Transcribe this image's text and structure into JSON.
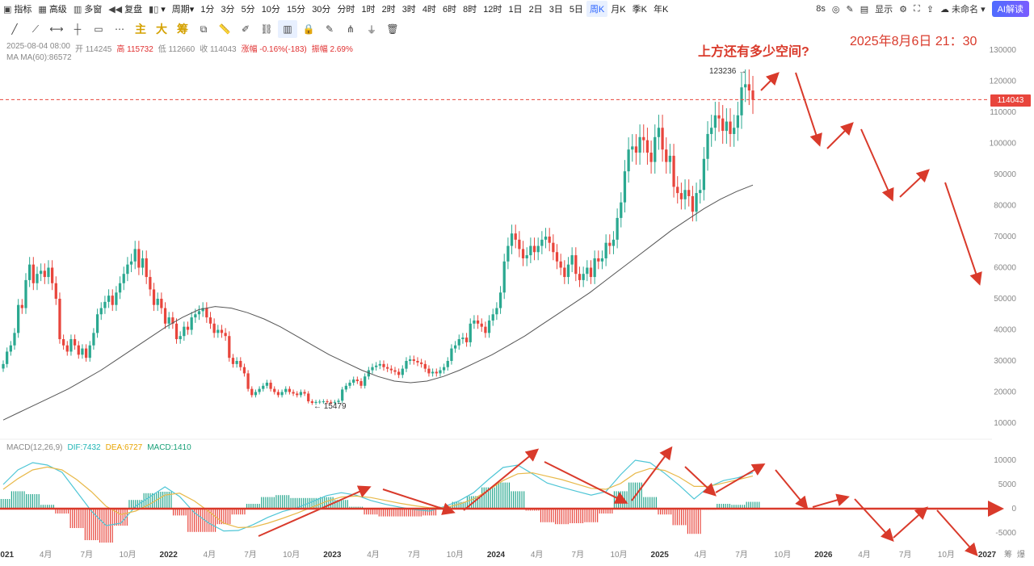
{
  "toolbar": {
    "items": [
      {
        "icon": "indicator-icon",
        "label": "指标"
      },
      {
        "icon": "advanced-icon",
        "label": "高级"
      },
      {
        "icon": "multiwindow-icon",
        "label": "多窗"
      },
      {
        "icon": "replay-icon",
        "label": "复盘"
      },
      {
        "icon": "chart-type-icon",
        "label": "▾"
      },
      {
        "icon": "",
        "label": "周期▾"
      },
      {
        "icon": "",
        "label": "1分"
      },
      {
        "icon": "",
        "label": "3分"
      },
      {
        "icon": "",
        "label": "5分"
      },
      {
        "icon": "",
        "label": "10分"
      },
      {
        "icon": "",
        "label": "15分"
      },
      {
        "icon": "",
        "label": "30分"
      },
      {
        "icon": "",
        "label": "分时"
      },
      {
        "icon": "",
        "label": "1时"
      },
      {
        "icon": "",
        "label": "2时"
      },
      {
        "icon": "",
        "label": "3时"
      },
      {
        "icon": "",
        "label": "4时"
      },
      {
        "icon": "",
        "label": "6时"
      },
      {
        "icon": "",
        "label": "8时"
      },
      {
        "icon": "",
        "label": "12时"
      },
      {
        "icon": "",
        "label": "1日"
      },
      {
        "icon": "",
        "label": "2日"
      },
      {
        "icon": "",
        "label": "3日"
      },
      {
        "icon": "",
        "label": "5日"
      },
      {
        "icon": "",
        "label": "周K",
        "active": true
      },
      {
        "icon": "",
        "label": "月K"
      },
      {
        "icon": "",
        "label": "季K"
      },
      {
        "icon": "",
        "label": "年K"
      }
    ],
    "right": {
      "refresh": "8s",
      "display": "显示",
      "cloud": "未命名",
      "ai": "AI解读"
    },
    "draw_tools": [
      "trend-line-icon",
      "ray-icon",
      "horizontal-segment-icon",
      "vertical-line-icon",
      "rectangle-icon",
      "more-icon"
    ],
    "special_tools": [
      "主",
      "大",
      "筹"
    ],
    "draw_tools2": [
      "copy-icon",
      "ruler-icon",
      "brush-icon",
      "link-icon",
      "candle-icon",
      "lock-icon",
      "note-icon",
      "magnet-icon",
      "filter-icon",
      "trash-icon"
    ]
  },
  "info": {
    "date": "2025-08-04 08:00",
    "open": "开 114245",
    "high": "高 115732",
    "low": "低 112660",
    "close": "收 114043",
    "change": "涨幅 -0.16%(-183)",
    "amplitude": "振幅 2.69%",
    "ma": "MA",
    "ma60": "MA(60):86572"
  },
  "macd_info": {
    "name": "MACD(12,26,9)",
    "dif": "DIF:7432",
    "dea": "DEA:6727",
    "macd": "MACD:1410"
  },
  "annotations": {
    "question": "上方还有多少空间?",
    "datetime": "2025年8月6日 21：30",
    "high_label": "123236",
    "low_label": "15479",
    "current_price": "114043"
  },
  "colors": {
    "up": "#2aa890",
    "down": "#e8453c",
    "ma": "#555555",
    "dif": "#4fc6d6",
    "dea": "#e8b94a",
    "annotation": "#d93a2b"
  },
  "chart_data": {
    "type": "line",
    "title": "",
    "price_axis": {
      "ylim": [
        5000,
        132000
      ],
      "ticks": [
        "130000",
        "120000",
        "110000",
        "100000",
        "90000",
        "80000",
        "70000",
        "60000",
        "50000",
        "40000",
        "30000",
        "20000",
        "10000"
      ]
    },
    "macd_axis": {
      "ylim": [
        -7500,
        12500
      ],
      "ticks": [
        "10000",
        "5000",
        "0",
        "-5000"
      ]
    },
    "time_axis": {
      "labels": [
        "2021",
        "4月",
        "7月",
        "10月",
        "2022",
        "4月",
        "7月",
        "10月",
        "2023",
        "4月",
        "7月",
        "10月",
        "2024",
        "4月",
        "7月",
        "10月",
        "2025",
        "4月",
        "7月",
        "10月",
        "2026",
        "4月",
        "7月",
        "10月",
        "2027"
      ],
      "extra": [
        "筹",
        "爆"
      ]
    },
    "weekly_close": [
      29000,
      33000,
      35000,
      39000,
      48000,
      47000,
      56000,
      61000,
      55000,
      58000,
      59000,
      57000,
      60000,
      55000,
      50000,
      37000,
      35000,
      33000,
      37000,
      35000,
      32000,
      34000,
      31000,
      35000,
      39000,
      45000,
      47000,
      49000,
      51000,
      48000,
      52000,
      55000,
      58000,
      61000,
      62000,
      66000,
      60000,
      63000,
      57000,
      53000,
      48000,
      50000,
      47000,
      42000,
      44000,
      42000,
      37000,
      38000,
      41000,
      40000,
      44000,
      45000,
      46000,
      47000,
      44000,
      42000,
      39000,
      40000,
      39000,
      38000,
      31000,
      29000,
      30000,
      28000,
      26000,
      21000,
      19000,
      20000,
      21000,
      22000,
      23000,
      21000,
      20000,
      19000,
      20000,
      21000,
      20000,
      19500,
      19000,
      20000,
      19500,
      17000,
      16500,
      16800,
      16900,
      17000,
      16800,
      16600,
      16800,
      17200,
      20800,
      22000,
      23000,
      24000,
      23500,
      22000,
      25000,
      27000,
      28000,
      28500,
      29000,
      28000,
      27500,
      27000,
      26500,
      25500,
      27500,
      30000,
      30500,
      30000,
      29500,
      29000,
      27500,
      26000,
      26500,
      26000,
      27000,
      28000,
      30000,
      34000,
      35000,
      37000,
      37500,
      36000,
      42000,
      43000,
      42000,
      41000,
      39000,
      43000,
      45000,
      47000,
      52000,
      62000,
      67000,
      71000,
      69000,
      66000,
      63000,
      64000,
      67000,
      65000,
      67000,
      69000,
      70000,
      68000,
      65000,
      62000,
      60000,
      57000,
      61000,
      64000,
      58000,
      56000,
      58000,
      60000,
      57000,
      63000,
      62000,
      63000,
      68000,
      67000,
      69000,
      76000,
      81000,
      91000,
      98000,
      99000,
      97000,
      102000,
      101000,
      97000,
      94000,
      102000,
      105000,
      98000,
      94000,
      96000,
      86000,
      84000,
      82000,
      85000,
      83000,
      78000,
      84000,
      85000,
      95000,
      103000,
      105000,
      109000,
      108000,
      104000,
      107000,
      103000,
      105000,
      109000,
      118000,
      119000,
      117000,
      114000
    ],
    "ma60": [
      11000,
      13500,
      16000,
      18500,
      21000,
      24000,
      27000,
      30500,
      34000,
      37500,
      41000,
      44000,
      46500,
      47500,
      47000,
      45500,
      43500,
      41000,
      38000,
      35000,
      32000,
      29500,
      27000,
      25000,
      23500,
      23000,
      23500,
      25000,
      27000,
      29500,
      32000,
      35000,
      38000,
      41500,
      45000,
      48500,
      52000,
      56000,
      60000,
      64000,
      68000,
      72000,
      75500,
      79000,
      82000,
      84500,
      86572
    ],
    "series": [
      {
        "name": "DIF",
        "values": [
          5000,
          8000,
          9500,
          9000,
          7500,
          3500,
          -500,
          -3500,
          -3000,
          500,
          2500,
          4500,
          2500,
          -800,
          -3000,
          -4600,
          -4500,
          -3300,
          -1800,
          -600,
          200,
          1400,
          2700,
          3300,
          2800,
          1700,
          900,
          300,
          -200,
          -500,
          400,
          1600,
          3300,
          6000,
          8500,
          9000,
          7200,
          5300,
          4400,
          3600,
          2800,
          3500,
          7000,
          10000,
          9500,
          7300,
          4800,
          2000,
          4500,
          5800,
          6400,
          7432
        ]
      },
      {
        "name": "DEA",
        "values": [
          4000,
          6200,
          8000,
          8600,
          8000,
          6000,
          3500,
          500,
          -1200,
          -500,
          1000,
          2800,
          3200,
          1600,
          -600,
          -3000,
          -3900,
          -3800,
          -3000,
          -2000,
          -900,
          300,
          1500,
          2400,
          2600,
          2300,
          1700,
          1100,
          600,
          200,
          200,
          900,
          2000,
          3800,
          5800,
          7200,
          7400,
          6700,
          6000,
          5100,
          4200,
          4000,
          5200,
          7300,
          8300,
          7900,
          6500,
          4600,
          4600,
          5300,
          6000,
          6727
        ]
      }
    ],
    "histogram": [
      2000,
      3600,
      3000,
      800,
      -1000,
      -4000,
      -6500,
      -7000,
      -3500,
      1800,
      3200,
      3500,
      -1400,
      -4800,
      -4800,
      -3200,
      -1200,
      1000,
      2400,
      2800,
      2200,
      2200,
      2400,
      1800,
      400,
      -1200,
      -1600,
      -1600,
      -1600,
      -1400,
      400,
      1400,
      2600,
      4400,
      5400,
      3600,
      -400,
      -2800,
      -3200,
      -3000,
      -2800,
      -1000,
      3600,
      5400,
      2400,
      -1200,
      -3400,
      -5200,
      -200,
      1000,
      800,
      1410
    ]
  }
}
